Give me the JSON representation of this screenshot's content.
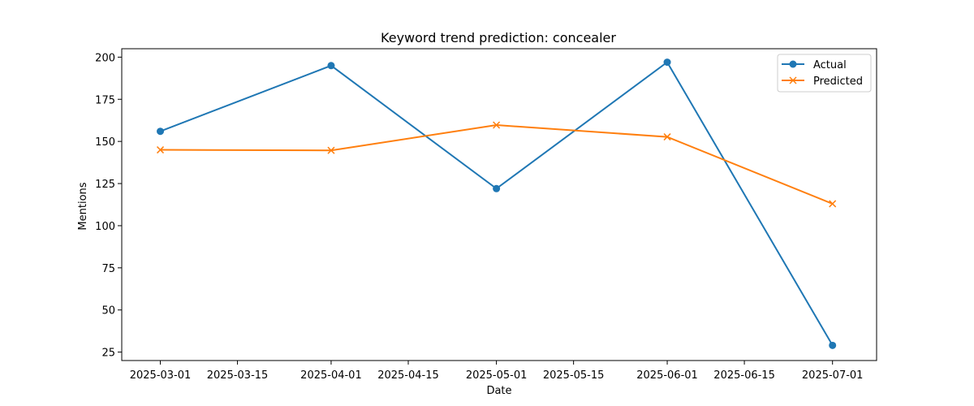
{
  "chart_data": {
    "type": "line",
    "title": "Keyword trend prediction: concealer",
    "xlabel": "Date",
    "ylabel": "Mentions",
    "x": [
      "2025-03-01",
      "2025-04-01",
      "2025-05-01",
      "2025-06-01",
      "2025-07-01"
    ],
    "xticks": [
      "2025-03-01",
      "2025-03-15",
      "2025-04-01",
      "2025-04-15",
      "2025-05-01",
      "2025-05-15",
      "2025-06-01",
      "2025-06-15",
      "2025-07-01"
    ],
    "xlim": [
      "2025-02-22",
      "2025-07-09"
    ],
    "yticks": [
      25,
      50,
      75,
      100,
      125,
      150,
      175,
      200
    ],
    "ylim": [
      20,
      205
    ],
    "grid": false,
    "legend_position": "top-right",
    "series": [
      {
        "name": "Actual",
        "values": [
          156,
          195,
          122,
          197,
          29
        ],
        "color": "#1f77b4",
        "marker": "circle"
      },
      {
        "name": "Predicted",
        "values": [
          145,
          144.7,
          159.7,
          152.7,
          113
        ],
        "color": "#ff7f0e",
        "marker": "x"
      }
    ]
  }
}
